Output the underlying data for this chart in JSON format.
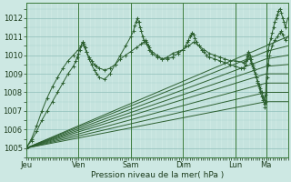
{
  "bg_color": "#cde8e3",
  "plot_bg_color": "#cde8e3",
  "grid_major_color": "#8fbfba",
  "grid_minor_color": "#a8d4cf",
  "line_color": "#2d6030",
  "xlabel": "Pression niveau de la mer( hPa )",
  "ylim": [
    1004.5,
    1012.8
  ],
  "yticks": [
    1005,
    1006,
    1007,
    1008,
    1009,
    1010,
    1011,
    1012
  ],
  "day_labels": [
    "Jeu",
    "Ven",
    "Sam",
    "Dim",
    "Lun",
    "Ma"
  ],
  "day_positions": [
    0,
    0.2,
    0.4,
    0.6,
    0.8,
    0.9167
  ],
  "xlim": [
    0.0,
    1.0
  ],
  "lines": [
    {
      "has_markers": true,
      "points": [
        [
          0.0,
          1005.0
        ],
        [
          0.02,
          1005.5
        ],
        [
          0.04,
          1006.2
        ],
        [
          0.06,
          1007.0
        ],
        [
          0.08,
          1007.7
        ],
        [
          0.1,
          1008.3
        ],
        [
          0.12,
          1008.8
        ],
        [
          0.14,
          1009.3
        ],
        [
          0.16,
          1009.7
        ],
        [
          0.18,
          1010.0
        ],
        [
          0.2,
          1010.3
        ],
        [
          0.21,
          1010.5
        ],
        [
          0.215,
          1010.7
        ],
        [
          0.22,
          1010.5
        ],
        [
          0.23,
          1010.2
        ],
        [
          0.24,
          1009.8
        ],
        [
          0.25,
          1009.5
        ],
        [
          0.26,
          1009.2
        ],
        [
          0.27,
          1009.0
        ],
        [
          0.28,
          1008.8
        ],
        [
          0.3,
          1008.7
        ],
        [
          0.32,
          1009.0
        ],
        [
          0.34,
          1009.5
        ],
        [
          0.36,
          1010.0
        ],
        [
          0.38,
          1010.5
        ],
        [
          0.4,
          1011.0
        ],
        [
          0.41,
          1011.3
        ],
        [
          0.415,
          1011.6
        ],
        [
          0.42,
          1011.8
        ],
        [
          0.425,
          1012.0
        ],
        [
          0.43,
          1011.8
        ],
        [
          0.435,
          1011.5
        ],
        [
          0.44,
          1011.3
        ],
        [
          0.445,
          1011.0
        ],
        [
          0.45,
          1010.8
        ],
        [
          0.46,
          1010.6
        ],
        [
          0.47,
          1010.4
        ],
        [
          0.48,
          1010.2
        ],
        [
          0.5,
          1010.0
        ],
        [
          0.52,
          1009.8
        ],
        [
          0.54,
          1009.8
        ],
        [
          0.56,
          1009.9
        ],
        [
          0.58,
          1010.1
        ],
        [
          0.6,
          1010.3
        ],
        [
          0.61,
          1010.5
        ],
        [
          0.615,
          1010.7
        ],
        [
          0.62,
          1010.8
        ],
        [
          0.625,
          1011.0
        ],
        [
          0.63,
          1011.1
        ],
        [
          0.635,
          1011.2
        ],
        [
          0.64,
          1011.1
        ],
        [
          0.645,
          1010.9
        ],
        [
          0.65,
          1010.7
        ],
        [
          0.66,
          1010.5
        ],
        [
          0.67,
          1010.3
        ],
        [
          0.68,
          1010.2
        ],
        [
          0.69,
          1010.0
        ],
        [
          0.7,
          1009.9
        ],
        [
          0.72,
          1009.8
        ],
        [
          0.74,
          1009.7
        ],
        [
          0.76,
          1009.6
        ],
        [
          0.78,
          1009.5
        ],
        [
          0.8,
          1009.4
        ],
        [
          0.82,
          1009.3
        ],
        [
          0.833,
          1009.3
        ],
        [
          0.84,
          1009.5
        ],
        [
          0.845,
          1009.8
        ],
        [
          0.85,
          1010.0
        ],
        [
          0.855,
          1009.8
        ],
        [
          0.86,
          1009.6
        ],
        [
          0.865,
          1009.4
        ],
        [
          0.87,
          1009.2
        ],
        [
          0.875,
          1009.0
        ],
        [
          0.88,
          1008.8
        ],
        [
          0.885,
          1008.6
        ],
        [
          0.89,
          1008.4
        ],
        [
          0.895,
          1008.2
        ],
        [
          0.9,
          1008.0
        ],
        [
          0.905,
          1007.8
        ],
        [
          0.91,
          1007.6
        ],
        [
          0.915,
          1007.9
        ],
        [
          0.917,
          1008.5
        ],
        [
          0.919,
          1009.0
        ],
        [
          0.921,
          1009.5
        ],
        [
          0.923,
          1010.0
        ],
        [
          0.925,
          1010.3
        ],
        [
          0.93,
          1010.6
        ],
        [
          0.935,
          1010.9
        ],
        [
          0.94,
          1011.2
        ],
        [
          0.945,
          1011.5
        ],
        [
          0.95,
          1011.8
        ],
        [
          0.955,
          1012.0
        ],
        [
          0.96,
          1012.2
        ],
        [
          0.965,
          1012.4
        ],
        [
          0.97,
          1012.5
        ],
        [
          0.975,
          1012.3
        ],
        [
          0.98,
          1012.0
        ],
        [
          0.985,
          1011.8
        ],
        [
          0.99,
          1011.5
        ],
        [
          1.0,
          1012.0
        ]
      ]
    },
    {
      "has_markers": false,
      "points": [
        [
          0.0,
          1005.0
        ],
        [
          0.917,
          1010.5
        ],
        [
          1.0,
          1011.0
        ]
      ]
    },
    {
      "has_markers": false,
      "points": [
        [
          0.0,
          1005.0
        ],
        [
          0.917,
          1010.2
        ],
        [
          1.0,
          1010.5
        ]
      ]
    },
    {
      "has_markers": false,
      "points": [
        [
          0.0,
          1005.0
        ],
        [
          0.917,
          1009.8
        ],
        [
          1.0,
          1010.0
        ]
      ]
    },
    {
      "has_markers": false,
      "points": [
        [
          0.0,
          1005.0
        ],
        [
          0.917,
          1009.4
        ],
        [
          1.0,
          1009.5
        ]
      ]
    },
    {
      "has_markers": false,
      "points": [
        [
          0.0,
          1005.0
        ],
        [
          0.917,
          1009.0
        ],
        [
          1.0,
          1009.0
        ]
      ]
    },
    {
      "has_markers": false,
      "points": [
        [
          0.0,
          1005.0
        ],
        [
          0.917,
          1008.5
        ],
        [
          1.0,
          1008.5
        ]
      ]
    },
    {
      "has_markers": false,
      "points": [
        [
          0.0,
          1005.0
        ],
        [
          0.917,
          1008.0
        ],
        [
          1.0,
          1008.0
        ]
      ]
    },
    {
      "has_markers": false,
      "points": [
        [
          0.0,
          1005.0
        ],
        [
          0.917,
          1007.5
        ],
        [
          1.0,
          1007.5
        ]
      ]
    },
    {
      "has_markers": true,
      "points": [
        [
          0.0,
          1005.0
        ],
        [
          0.02,
          1005.4
        ],
        [
          0.04,
          1005.9
        ],
        [
          0.06,
          1006.5
        ],
        [
          0.08,
          1007.0
        ],
        [
          0.1,
          1007.5
        ],
        [
          0.12,
          1008.0
        ],
        [
          0.14,
          1008.5
        ],
        [
          0.16,
          1009.0
        ],
        [
          0.18,
          1009.4
        ],
        [
          0.19,
          1009.7
        ],
        [
          0.195,
          1009.9
        ],
        [
          0.2,
          1010.1
        ],
        [
          0.205,
          1010.3
        ],
        [
          0.21,
          1010.5
        ],
        [
          0.215,
          1010.7
        ],
        [
          0.22,
          1010.6
        ],
        [
          0.225,
          1010.4
        ],
        [
          0.23,
          1010.2
        ],
        [
          0.24,
          1009.9
        ],
        [
          0.25,
          1009.7
        ],
        [
          0.26,
          1009.5
        ],
        [
          0.27,
          1009.4
        ],
        [
          0.28,
          1009.3
        ],
        [
          0.3,
          1009.2
        ],
        [
          0.32,
          1009.3
        ],
        [
          0.34,
          1009.5
        ],
        [
          0.36,
          1009.8
        ],
        [
          0.38,
          1010.0
        ],
        [
          0.4,
          1010.2
        ],
        [
          0.42,
          1010.4
        ],
        [
          0.44,
          1010.6
        ],
        [
          0.45,
          1010.7
        ],
        [
          0.455,
          1010.8
        ],
        [
          0.46,
          1010.7
        ],
        [
          0.465,
          1010.5
        ],
        [
          0.47,
          1010.3
        ],
        [
          0.48,
          1010.1
        ],
        [
          0.5,
          1009.9
        ],
        [
          0.52,
          1009.8
        ],
        [
          0.54,
          1009.9
        ],
        [
          0.56,
          1010.1
        ],
        [
          0.58,
          1010.2
        ],
        [
          0.6,
          1010.3
        ],
        [
          0.62,
          1010.5
        ],
        [
          0.64,
          1010.7
        ],
        [
          0.66,
          1010.5
        ],
        [
          0.68,
          1010.3
        ],
        [
          0.7,
          1010.1
        ],
        [
          0.72,
          1010.0
        ],
        [
          0.74,
          1009.9
        ],
        [
          0.76,
          1009.8
        ],
        [
          0.78,
          1009.7
        ],
        [
          0.8,
          1009.7
        ],
        [
          0.833,
          1009.6
        ],
        [
          0.84,
          1009.7
        ],
        [
          0.845,
          1010.0
        ],
        [
          0.85,
          1010.2
        ],
        [
          0.855,
          1010.0
        ],
        [
          0.86,
          1009.8
        ],
        [
          0.865,
          1009.5
        ],
        [
          0.87,
          1009.3
        ],
        [
          0.875,
          1009.0
        ],
        [
          0.88,
          1008.8
        ],
        [
          0.885,
          1008.5
        ],
        [
          0.89,
          1008.3
        ],
        [
          0.895,
          1008.0
        ],
        [
          0.9,
          1007.8
        ],
        [
          0.905,
          1007.6
        ],
        [
          0.91,
          1007.4
        ],
        [
          0.913,
          1007.2
        ],
        [
          0.915,
          1007.5
        ],
        [
          0.917,
          1008.0
        ],
        [
          0.92,
          1008.8
        ],
        [
          0.925,
          1009.5
        ],
        [
          0.93,
          1010.0
        ],
        [
          0.94,
          1010.5
        ],
        [
          0.95,
          1010.8
        ],
        [
          0.96,
          1011.0
        ],
        [
          0.97,
          1011.2
        ],
        [
          0.975,
          1011.3
        ],
        [
          0.98,
          1011.1
        ],
        [
          0.99,
          1010.8
        ],
        [
          1.0,
          1011.0
        ]
      ]
    }
  ]
}
